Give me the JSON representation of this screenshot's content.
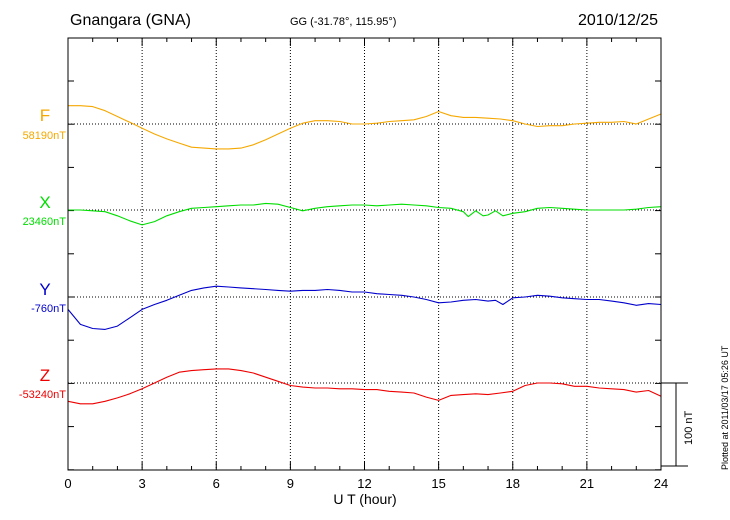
{
  "header": {
    "station": "Gnangara (GNA)",
    "coords": "GG (-31.78°, 115.95°)",
    "date": "2010/12/25"
  },
  "footnote": "Plotted at 2011/03/17 05:26 UT",
  "scale_label": "100 nT",
  "chart_data": {
    "type": "line",
    "xlabel": "U T (hour)",
    "xlim": [
      0,
      24
    ],
    "xticks": [
      "0",
      "3",
      "6",
      "9",
      "12",
      "15",
      "18",
      "21",
      "24"
    ],
    "scale_bar_nT": 100,
    "series": [
      {
        "name": "F",
        "baseline": "58190nT",
        "color": "#f5a800",
        "x": [
          0,
          0.5,
          1,
          1.5,
          2,
          2.5,
          3,
          3.5,
          4,
          4.5,
          5,
          5.5,
          6,
          6.5,
          7,
          7.5,
          8,
          8.5,
          9,
          9.5,
          10,
          10.5,
          11,
          11.5,
          12,
          12.5,
          13,
          13.5,
          14,
          14.5,
          15,
          15.5,
          16,
          16.5,
          17,
          17.5,
          18,
          18.5,
          19,
          19.5,
          20,
          20.5,
          21,
          21.5,
          22,
          22.5,
          23,
          23.5,
          24
        ],
        "y": [
          22,
          22,
          21,
          16,
          9,
          2,
          -5,
          -12,
          -18,
          -23,
          -28,
          -29,
          -30,
          -30,
          -29,
          -25,
          -19,
          -12,
          -5,
          1,
          4,
          4,
          3,
          0,
          0,
          1,
          3,
          4,
          5,
          9,
          15,
          10,
          8,
          8,
          7,
          6,
          4,
          0,
          -3,
          -2,
          -2,
          0,
          1,
          2,
          2,
          3,
          0,
          6,
          12
        ]
      },
      {
        "name": "X",
        "baseline": "23460nT",
        "color": "#00dd00",
        "x": [
          0,
          0.5,
          1,
          1.5,
          2,
          2.5,
          3,
          3.5,
          4,
          4.5,
          5,
          5.5,
          6,
          6.5,
          7,
          7.5,
          8,
          8.5,
          9,
          9.5,
          10,
          10.5,
          11,
          11.5,
          12,
          12.5,
          13,
          13.5,
          14,
          14.5,
          15,
          15.5,
          16,
          16.2,
          16.5,
          16.8,
          17,
          17.3,
          17.6,
          18,
          18.5,
          19,
          19.5,
          20,
          20.5,
          21,
          21.5,
          22,
          22.5,
          23,
          23.5,
          24
        ],
        "y": [
          0,
          0,
          -1,
          -2,
          -7,
          -13,
          -18,
          -14,
          -7,
          -2,
          2,
          3,
          4,
          5,
          6,
          6,
          8,
          7,
          3,
          -1,
          2,
          4,
          5,
          6,
          6,
          5,
          6,
          7,
          6,
          5,
          3,
          2,
          -2,
          -8,
          -1,
          -7,
          -6,
          -1,
          -7,
          -4,
          -2,
          2,
          3,
          2,
          1,
          0,
          0,
          0,
          0,
          1,
          3,
          4
        ]
      },
      {
        "name": "Y",
        "baseline": "-760nT",
        "color": "#0000cc",
        "x": [
          0,
          0.5,
          1,
          1.5,
          2,
          2.5,
          3,
          3.5,
          4,
          4.5,
          5,
          5.5,
          6,
          6.5,
          7,
          7.5,
          8,
          8.5,
          9,
          9.5,
          10,
          10.5,
          11,
          11.5,
          12,
          12.5,
          13,
          13.5,
          14,
          14.5,
          15,
          15.5,
          16,
          16.5,
          17,
          17.3,
          17.6,
          18,
          18.5,
          19,
          19.5,
          20,
          20.5,
          21,
          21.5,
          22,
          22.5,
          23,
          23.5,
          24
        ],
        "y": [
          -15,
          -33,
          -38,
          -39,
          -35,
          -25,
          -15,
          -9,
          -4,
          2,
          8,
          11,
          13,
          12,
          11,
          10,
          9,
          8,
          7,
          8,
          8,
          9,
          8,
          6,
          6,
          4,
          3,
          2,
          0,
          -3,
          -7,
          -6,
          -4,
          -3,
          -5,
          -4,
          -9,
          -1,
          0,
          2,
          1,
          -1,
          -2,
          -3,
          -3,
          -5,
          -7,
          -10,
          -8,
          -9
        ]
      },
      {
        "name": "Z",
        "baseline": "-53240nT",
        "color": "#ee0000",
        "x": [
          0,
          0.5,
          1,
          1.5,
          2,
          2.5,
          3,
          3.5,
          4,
          4.5,
          5,
          5.5,
          6,
          6.5,
          7,
          7.5,
          8,
          8.5,
          9,
          9.5,
          10,
          10.5,
          11,
          11.5,
          12,
          12.5,
          13,
          13.5,
          14,
          14.5,
          15,
          15.5,
          16,
          16.5,
          17,
          17.5,
          18,
          18.5,
          19,
          19.5,
          20,
          20.5,
          21,
          21.5,
          22,
          22.5,
          23,
          23.5,
          24
        ],
        "y": [
          -22,
          -25,
          -25,
          -22,
          -18,
          -13,
          -7,
          0,
          7,
          13,
          15,
          16,
          17,
          17,
          15,
          12,
          7,
          2,
          -3,
          -5,
          -6,
          -6,
          -7,
          -7,
          -8,
          -8,
          -10,
          -11,
          -12,
          -17,
          -21,
          -15,
          -14,
          -13,
          -14,
          -12,
          -10,
          -3,
          0,
          0,
          -1,
          -4,
          -4,
          -6,
          -7,
          -8,
          -11,
          -9,
          -16
        ]
      }
    ]
  }
}
